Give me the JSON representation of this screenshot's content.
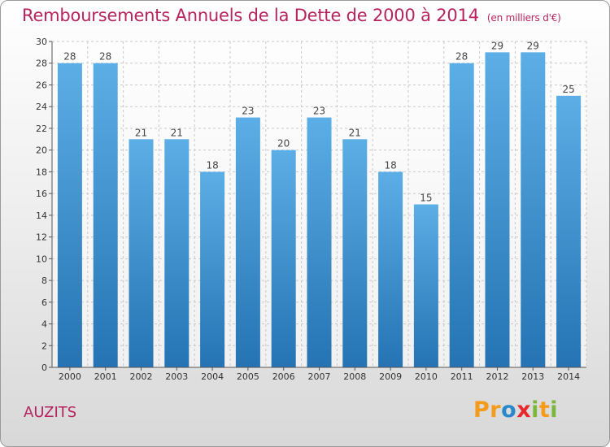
{
  "title": "Remboursements Annuels de la Dette de 2000 à 2014",
  "subtitle": "(en milliers d'€)",
  "commune": "AUZITS",
  "logo": {
    "letters": [
      "P",
      "r",
      "o",
      "x",
      "i",
      "t",
      "i"
    ],
    "colors": [
      "#f59b1b",
      "#f59b1b",
      "#2a88c8",
      "#e8262c",
      "#7bb73d",
      "#f59b1b",
      "#7bb73d"
    ]
  },
  "colors": {
    "bar_top": "#5caee6",
    "bar_bottom": "#2573b3",
    "title": "#b5245e",
    "grid": "#c8c8c8"
  },
  "chart_data": {
    "type": "bar",
    "categories": [
      "2000",
      "2001",
      "2002",
      "2003",
      "2004",
      "2005",
      "2006",
      "2007",
      "2008",
      "2009",
      "2010",
      "2011",
      "2012",
      "2013",
      "2014"
    ],
    "values": [
      28,
      28,
      21,
      21,
      18,
      23,
      20,
      23,
      21,
      18,
      15,
      28,
      29,
      29,
      25
    ],
    "ylim": [
      0,
      30
    ],
    "yticks": [
      0,
      2,
      4,
      6,
      8,
      10,
      12,
      14,
      16,
      18,
      20,
      22,
      24,
      26,
      28,
      30
    ],
    "grid": true,
    "data_labels": true
  }
}
